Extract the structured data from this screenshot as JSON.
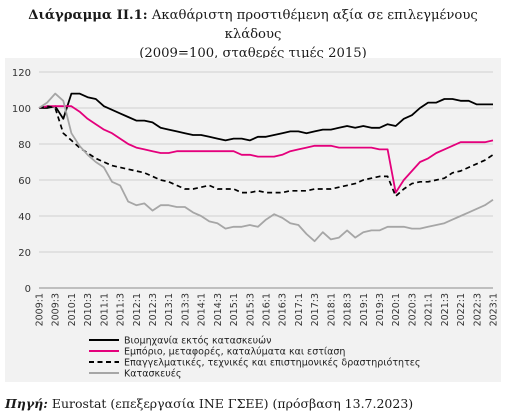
{
  "header": {
    "title_bold": "Διάγραμμα ΙΙ.1:",
    "title_line1": "Ακαθάριστη προστιθέμενη αξία σε επιλεγμένους κλάδους",
    "title_line2": "(2009=100, σταθερές τιμές 2015)"
  },
  "footer": {
    "source_label": "Πηγή:",
    "source_text": "Eurostat (επεξεργασία ΙΝΕ ΓΣΕΕ) (πρόσβαση 13.7.2023)"
  },
  "chart_data": {
    "type": "line",
    "title": "Ακαθάριστη προστιθέμενη αξία σε επιλεγμένους κλάδους (2009=100, σταθερές τιμές 2015)",
    "ylim": [
      0,
      120
    ],
    "yticks": [
      0,
      20,
      40,
      60,
      80,
      100,
      120
    ],
    "grid": true,
    "legend_position": "bottom-center",
    "x": [
      "2009:1",
      "2009:2",
      "2009:3",
      "2009:4",
      "2010:1",
      "2010:2",
      "2010:3",
      "2010:4",
      "2011:1",
      "2011:2",
      "2011:3",
      "2011:4",
      "2012:1",
      "2012:2",
      "2012:3",
      "2012:4",
      "2013:1",
      "2013:2",
      "2013:3",
      "2013:4",
      "2014:1",
      "2014:2",
      "2014:3",
      "2014:4",
      "2015:1",
      "2015:2",
      "2015:3",
      "2015:4",
      "2016:1",
      "2016:2",
      "2016:3",
      "2016:4",
      "2017:1",
      "2017:2",
      "2017:3",
      "2017:4",
      "2018:1",
      "2018:2",
      "2018:3",
      "2018:4",
      "2019:1",
      "2019:2",
      "2019:3",
      "2019:4",
      "2020:1",
      "2020:2",
      "2020:3",
      "2020:4",
      "2021:1",
      "2021:2",
      "2021:3",
      "2021:4",
      "2022:1",
      "2022:2",
      "2022:3",
      "2022:4",
      "2023:1"
    ],
    "xtick_labels": [
      "2009:1",
      "2009:3",
      "2010:1",
      "2010:3",
      "2011:1",
      "2011:3",
      "2012:1",
      "2012:3",
      "2013:1",
      "2013:3",
      "2014:1",
      "2014:3",
      "2015:1",
      "2015:3",
      "2016:1",
      "2016:3",
      "2017:1",
      "2017:3",
      "2018:1",
      "2018:3",
      "2019:1",
      "2019:3",
      "2020:1",
      "2020:3",
      "2021:1",
      "2021:3",
      "2022:1",
      "2022:3",
      "2023:1"
    ],
    "series": [
      {
        "name": "Βιομηχανία εκτός κατασκευών",
        "color": "#000000",
        "dash": "solid",
        "values": [
          100,
          100,
          101,
          94,
          108,
          108,
          106,
          105,
          101,
          99,
          97,
          95,
          93,
          93,
          92,
          89,
          88,
          87,
          86,
          85,
          85,
          84,
          83,
          82,
          83,
          83,
          82,
          84,
          84,
          85,
          86,
          87,
          87,
          86,
          87,
          88,
          88,
          89,
          90,
          89,
          90,
          89,
          89,
          91,
          90,
          94,
          96,
          100,
          103,
          103,
          105,
          105,
          104,
          104,
          102,
          102,
          102
        ]
      },
      {
        "name": "Εμπόριο, μεταφορές, καταλύματα και εστίαση",
        "color": "#e4007c",
        "dash": "solid",
        "values": [
          100,
          101,
          101,
          101,
          101,
          98,
          94,
          91,
          88,
          86,
          83,
          80,
          78,
          77,
          76,
          75,
          75,
          76,
          76,
          76,
          76,
          76,
          76,
          76,
          76,
          74,
          74,
          73,
          73,
          73,
          74,
          76,
          77,
          78,
          79,
          79,
          79,
          78,
          78,
          78,
          78,
          78,
          77,
          77,
          53,
          60,
          65,
          70,
          72,
          75,
          77,
          79,
          81,
          81,
          81,
          81,
          82
        ]
      },
      {
        "name": "Επαγγελματικές, τεχνικές και επιστημονικές δραστηριότητες",
        "color": "#000000",
        "dash": "dashed",
        "values": [
          100,
          101,
          100,
          86,
          82,
          78,
          75,
          72,
          70,
          68,
          67,
          66,
          65,
          64,
          62,
          60,
          59,
          57,
          55,
          55,
          56,
          57,
          55,
          55,
          55,
          53,
          53,
          54,
          53,
          53,
          53,
          54,
          54,
          54,
          55,
          55,
          55,
          56,
          57,
          58,
          60,
          61,
          62,
          62,
          51,
          55,
          58,
          59,
          59,
          60,
          61,
          64,
          65,
          67,
          69,
          71,
          74
        ]
      },
      {
        "name": "Κατασκευές",
        "color": "#a6a6a6",
        "dash": "solid",
        "values": [
          100,
          103,
          108,
          104,
          86,
          79,
          74,
          70,
          67,
          59,
          57,
          48,
          46,
          47,
          43,
          46,
          46,
          45,
          45,
          42,
          40,
          37,
          36,
          33,
          34,
          34,
          35,
          34,
          38,
          41,
          39,
          36,
          35,
          30,
          26,
          31,
          27,
          28,
          32,
          28,
          31,
          32,
          32,
          34,
          34,
          34,
          33,
          33,
          34,
          35,
          36,
          38,
          40,
          42,
          44,
          46,
          49
        ]
      }
    ]
  }
}
